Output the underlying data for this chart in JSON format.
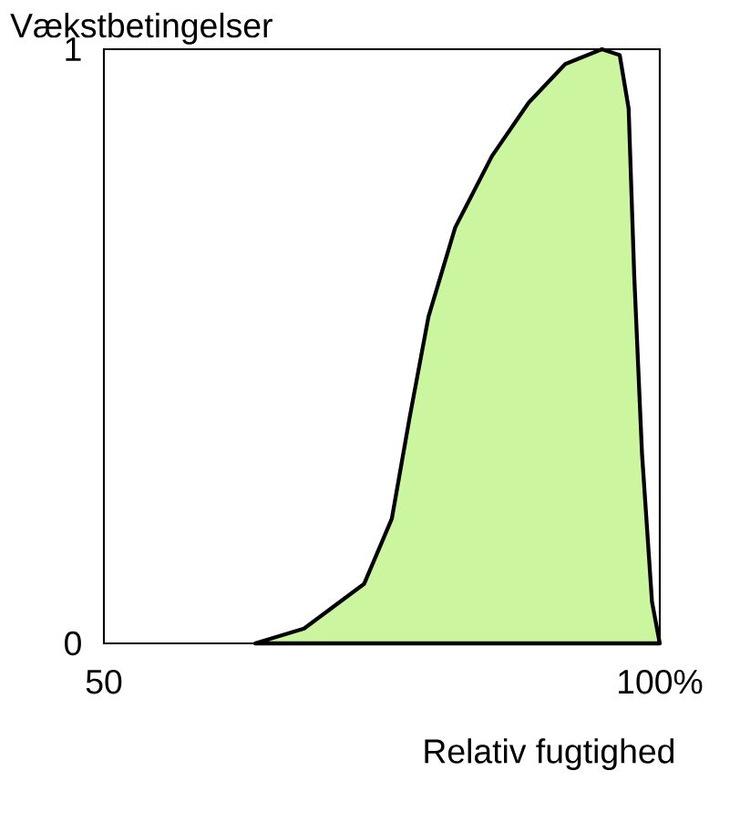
{
  "chart_data": {
    "type": "area",
    "xlabel": "Relativ fugtighed",
    "ylabel": "Vækstbetingelser",
    "x": [
      63.6,
      68,
      73.4,
      75.9,
      77.5,
      79.2,
      81.6,
      84.9,
      88.2,
      91.5,
      94.8,
      96.4,
      97.2,
      97.7,
      98.4,
      99.3,
      100
    ],
    "values": [
      0,
      0.025,
      0.1,
      0.21,
      0.38,
      0.55,
      0.7,
      0.82,
      0.91,
      0.975,
      1.0,
      0.99,
      0.9,
      0.62,
      0.32,
      0.07,
      0
    ],
    "color": "#ccf5a0",
    "xlim": [
      50,
      100
    ],
    "ylim": [
      0,
      1
    ],
    "xticks": [
      {
        "value": 50,
        "label": "50"
      },
      {
        "value": 100,
        "label": "100%"
      }
    ],
    "yticks": [
      0,
      1
    ]
  }
}
